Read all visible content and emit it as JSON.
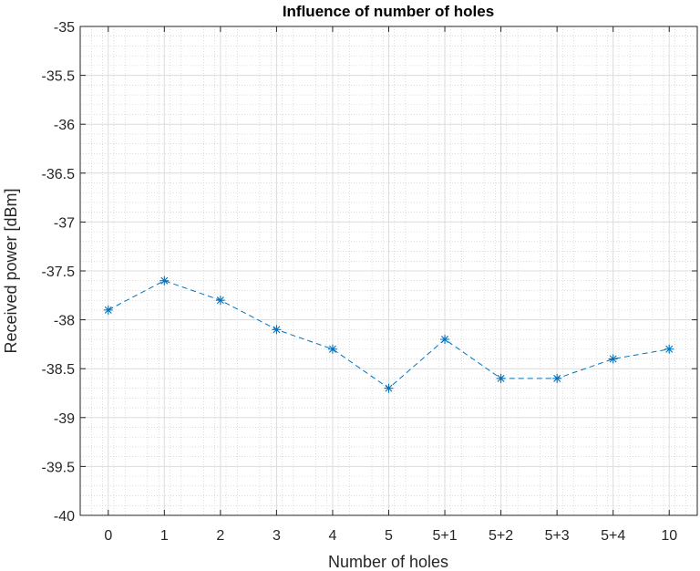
{
  "chart_data": {
    "type": "line",
    "title": "Influence of number of holes",
    "xlabel": "Number of holes",
    "ylabel": "Received power [dBm]",
    "categories": [
      "0",
      "1",
      "2",
      "3",
      "4",
      "5",
      "5+1",
      "5+2",
      "5+3",
      "5+4",
      "10"
    ],
    "series": [
      {
        "values": [
          -37.9,
          -37.6,
          -37.8,
          -38.1,
          -38.3,
          -38.7,
          -38.2,
          -38.6,
          -38.6,
          -38.4,
          -38.3
        ]
      }
    ],
    "ylim": [
      -40,
      -35
    ],
    "yticks": [
      "-35",
      "-35.5",
      "-36",
      "-36.5",
      "-37",
      "-37.5",
      "-38",
      "-38.5",
      "-39",
      "-39.5",
      "-40"
    ],
    "grid": true,
    "minor_grid": true,
    "line_style": "dashed",
    "marker": "asterisk",
    "colors": {
      "series": "#0072BD"
    }
  }
}
